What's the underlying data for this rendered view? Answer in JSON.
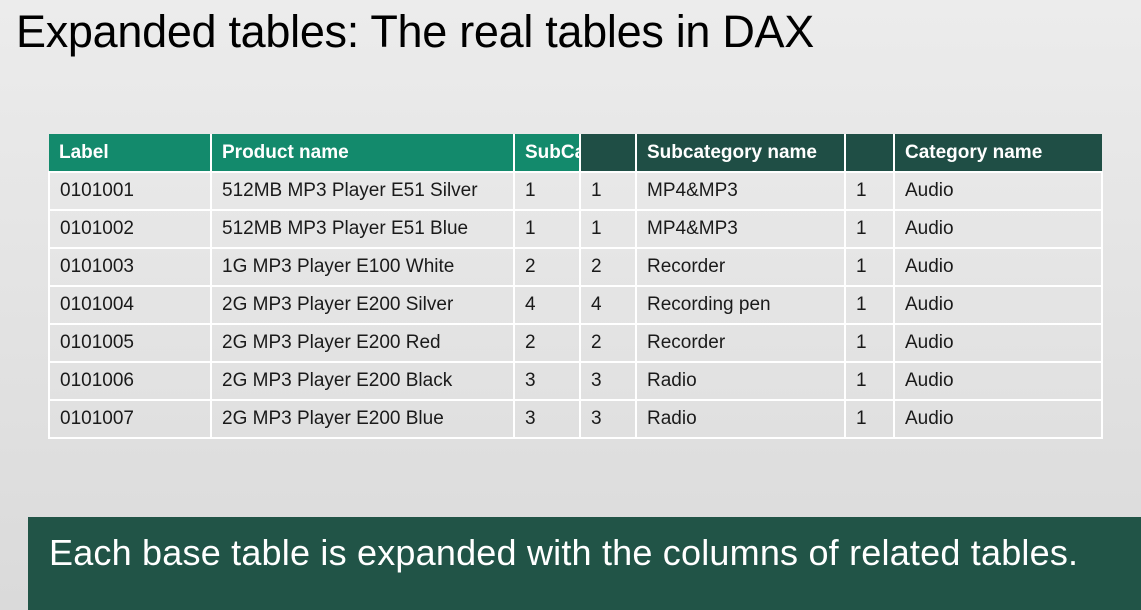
{
  "title": "Expanded tables: The real tables in DAX",
  "table": {
    "headers": [
      "Label",
      "Product name",
      "SubCa",
      "",
      "Subcategory name",
      "",
      "Category name"
    ],
    "rows": [
      [
        "0101001",
        "512MB MP3 Player E51 Silver",
        "1",
        "1",
        "MP4&MP3",
        "1",
        "Audio"
      ],
      [
        "0101002",
        "512MB MP3 Player E51 Blue",
        "1",
        "1",
        "MP4&MP3",
        "1",
        "Audio"
      ],
      [
        "0101003",
        "1G MP3 Player E100 White",
        "2",
        "2",
        "Recorder",
        "1",
        "Audio"
      ],
      [
        "0101004",
        "2G MP3 Player E200 Silver",
        "4",
        "4",
        "Recording pen",
        "1",
        "Audio"
      ],
      [
        "0101005",
        "2G MP3 Player E200 Red",
        "2",
        "2",
        "Recorder",
        "1",
        "Audio"
      ],
      [
        "0101006",
        "2G MP3 Player E200 Black",
        "3",
        "3",
        "Radio",
        "1",
        "Audio"
      ],
      [
        "0101007",
        "2G MP3 Player E200 Blue",
        "3",
        "3",
        "Radio",
        "1",
        "Audio"
      ]
    ]
  },
  "footer": {
    "text": "Each base table is expanded with the columns of related tables."
  },
  "colors": {
    "product_header": "#138a6c",
    "related_header": "#1f4e45",
    "footer_background": "#215447"
  }
}
